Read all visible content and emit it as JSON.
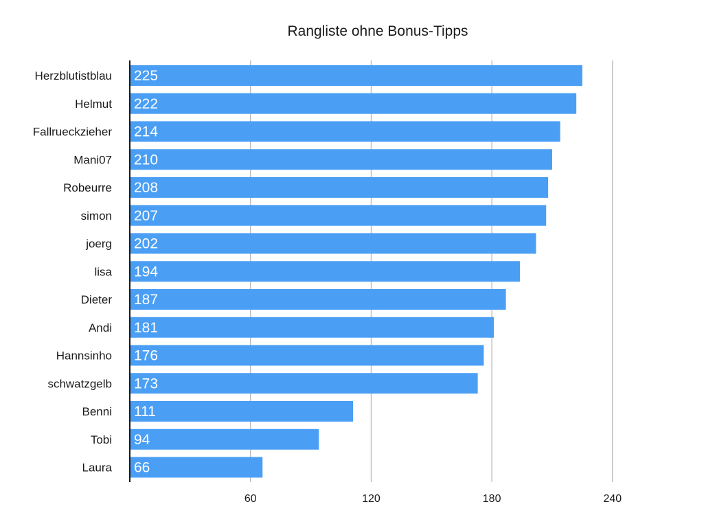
{
  "chart_data": {
    "type": "bar",
    "orientation": "horizontal",
    "title": "Rangliste ohne Bonus-Tipps",
    "xlabel": "",
    "ylabel": "",
    "categories": [
      "Herzblutistblau",
      "Helmut",
      "Fallrueckzieher",
      "Mani07",
      "Robeurre",
      "simon",
      "joerg",
      "lisa",
      "Dieter",
      "Andi",
      "Hannsinho",
      "schwatzgelb",
      "Benni",
      "Tobi",
      "Laura"
    ],
    "values": [
      225,
      222,
      214,
      210,
      208,
      207,
      202,
      194,
      187,
      181,
      176,
      173,
      111,
      94,
      66
    ],
    "xlim": [
      0,
      280
    ],
    "xticks": [
      60,
      120,
      180,
      240
    ],
    "grid": true,
    "data_labels": "inside-left",
    "bar_color": "#4a9ff5",
    "grid_color": "#b3b3b3",
    "axis_color": "#1a1a1a"
  }
}
